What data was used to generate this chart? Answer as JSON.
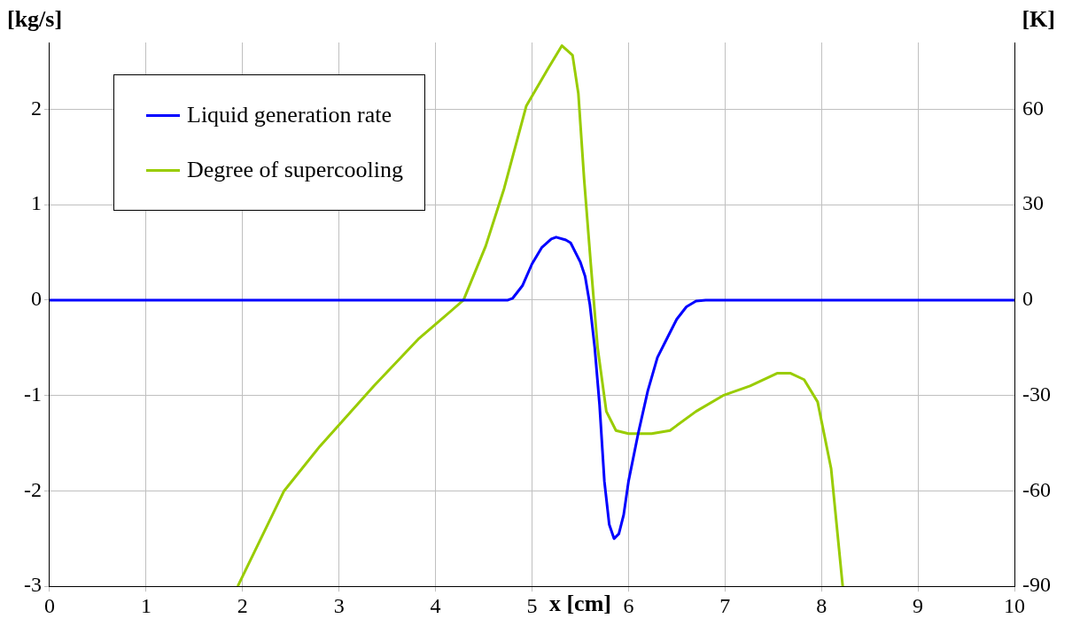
{
  "chart_data": {
    "type": "line",
    "xlabel": "x [cm]",
    "ylabel": "[kg/s]",
    "y2label": "[K]",
    "xlim": [
      0,
      10
    ],
    "xticks": [
      0,
      1,
      2,
      3,
      4,
      5,
      6,
      7,
      8,
      9,
      10
    ],
    "ylim": [
      -3,
      2.7
    ],
    "yticks": [
      -3,
      -2,
      -1,
      0,
      1,
      2
    ],
    "y2lim": [
      -90,
      81
    ],
    "y2ticks": [
      -90,
      -60,
      -30,
      0,
      30,
      60
    ],
    "grid": true,
    "legend": "top left",
    "marker": "none",
    "line_style": "solid",
    "series": [
      {
        "name": "Liquid generation rate",
        "color": "#0000ff",
        "x": [
          0,
          4.75,
          4.8,
          4.9,
          5.0,
          5.1,
          5.2,
          5.25,
          5.35,
          5.4,
          5.5,
          5.55,
          5.6,
          5.65,
          5.7,
          5.75,
          5.8,
          5.85,
          5.9,
          5.95,
          6.0,
          6.1,
          6.2,
          6.3,
          6.4,
          6.5,
          6.6,
          6.7,
          6.8,
          10
        ],
        "values": [
          0,
          0,
          0.02,
          0.15,
          0.38,
          0.55,
          0.64,
          0.66,
          0.63,
          0.6,
          0.4,
          0.25,
          -0.05,
          -0.5,
          -1.1,
          -1.9,
          -2.35,
          -2.5,
          -2.45,
          -2.25,
          -1.9,
          -1.4,
          -0.95,
          -0.6,
          -0.4,
          -0.2,
          -0.07,
          -0.01,
          0,
          0
        ]
      },
      {
        "name": "Degree of supercooling",
        "color": "#99cc00",
        "axis": "y2",
        "x": [
          1.95,
          2.43,
          2.8,
          3.36,
          3.83,
          4.1,
          4.29,
          4.52,
          4.71,
          4.94,
          5.17,
          5.31,
          5.42,
          5.48,
          5.54,
          5.61,
          5.68,
          5.77,
          5.87,
          6.0,
          6.24,
          6.43,
          6.7,
          6.98,
          7.26,
          7.54,
          7.68,
          7.82,
          7.96,
          8.1,
          8.22
        ],
        "values": [
          -90,
          -60,
          -46,
          -27,
          -12,
          -5,
          0,
          17,
          35,
          61,
          73,
          80,
          77,
          65,
          38,
          11,
          -15,
          -35,
          -41,
          -42,
          -42,
          -41,
          -35,
          -30,
          -27,
          -23,
          -23,
          -25,
          -32,
          -53,
          -90
        ]
      }
    ]
  }
}
